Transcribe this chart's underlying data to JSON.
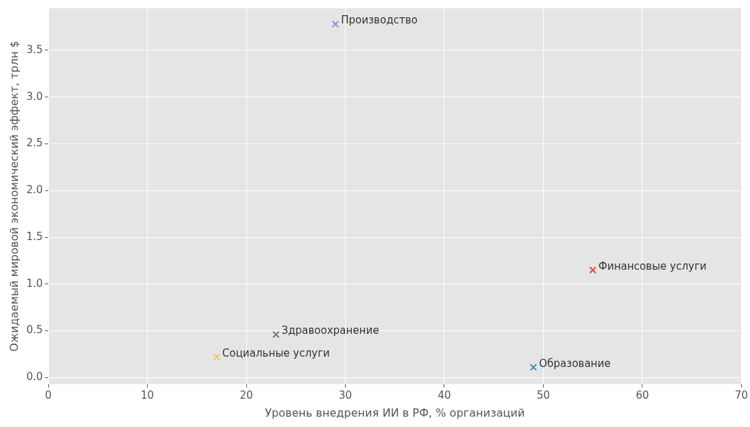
{
  "chart_data": {
    "type": "scatter",
    "xlabel": "Уровень внедрения ИИ в РФ, % организаций",
    "ylabel": "Ожидаемый мировой экономический эффект, трлн $",
    "series": [
      {
        "name": "Производство",
        "color": "#988ed5",
        "x": [
          29
        ],
        "values": [
          3.78
        ]
      },
      {
        "name": "Финансовые услуги",
        "color": "#e24a33",
        "x": [
          55
        ],
        "values": [
          1.15
        ]
      },
      {
        "name": "Здравоохранение",
        "color": "#777777",
        "x": [
          23
        ],
        "values": [
          0.46
        ]
      },
      {
        "name": "Социальные услуги",
        "color": "#fbc15e",
        "x": [
          17
        ],
        "values": [
          0.22
        ]
      },
      {
        "name": "Образование",
        "color": "#348abd",
        "x": [
          49
        ],
        "values": [
          0.11
        ]
      }
    ],
    "xlim": [
      0,
      70
    ],
    "xticks": [
      0,
      10,
      20,
      30,
      40,
      50,
      60,
      70
    ],
    "ylim": [
      -0.07,
      3.95
    ],
    "yticks": [
      {
        "value": 0,
        "label": "0.0"
      },
      0.5,
      {
        "value": 1,
        "label": "1.0"
      },
      1.5,
      {
        "value": 2,
        "label": "2.0"
      },
      2.5,
      {
        "value": 3,
        "label": "3.0"
      },
      3.5
    ],
    "grid": true,
    "legend": false,
    "marker": "cross"
  }
}
